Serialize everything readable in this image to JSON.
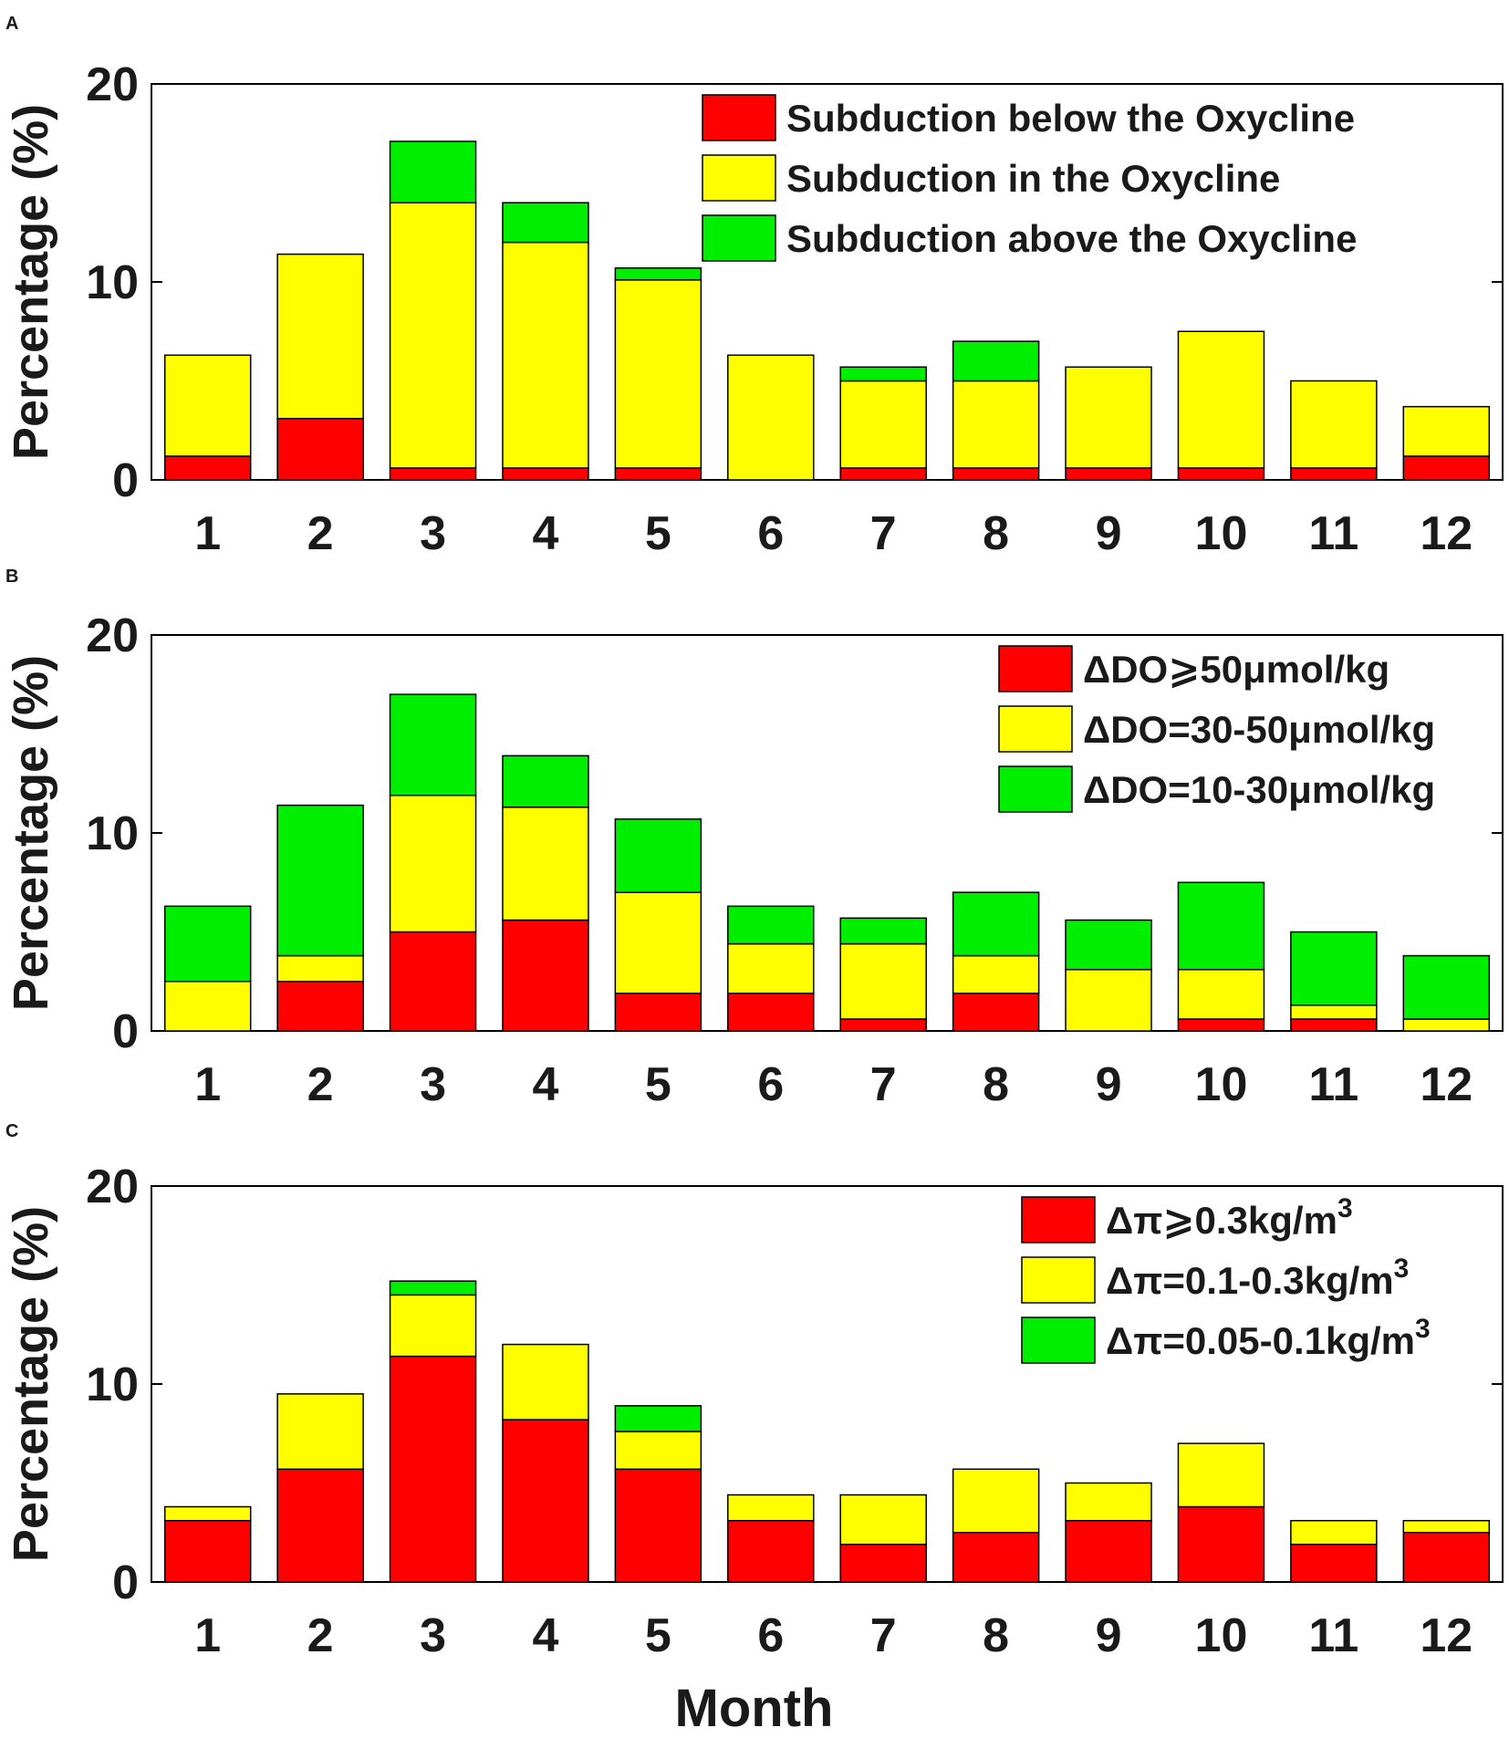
{
  "figure": {
    "xlabel": "Month"
  },
  "colors": {
    "red": "#ff0000",
    "yellow": "#ffff00",
    "green": "#00ee00",
    "axis": "#000000"
  },
  "chart_data": [
    {
      "panel": "A",
      "type": "bar",
      "stacked": true,
      "ylabel": "Percentage (%)",
      "ylim": [
        0,
        20
      ],
      "yticks": [
        0,
        10,
        20
      ],
      "categories": [
        "1",
        "2",
        "3",
        "4",
        "5",
        "6",
        "7",
        "8",
        "9",
        "10",
        "11",
        "12"
      ],
      "legend_position": "top-right",
      "series": [
        {
          "name": "Subduction below the Oxycline",
          "color": "#ff0000",
          "values": [
            1.2,
            3.1,
            0.6,
            0.6,
            0.6,
            0,
            0.6,
            0.6,
            0.6,
            0.6,
            0.6,
            1.2
          ]
        },
        {
          "name": "Subduction in the Oxycline",
          "color": "#ffff00",
          "values": [
            5.1,
            8.3,
            13.4,
            11.4,
            9.5,
            6.3,
            4.4,
            4.4,
            5.1,
            6.9,
            4.4,
            2.5
          ]
        },
        {
          "name": "Subduction above the Oxycline",
          "color": "#00ee00",
          "values": [
            0,
            0,
            3.1,
            2.0,
            0.6,
            0,
            0.7,
            2.0,
            0,
            0,
            0,
            0
          ]
        }
      ]
    },
    {
      "panel": "B",
      "type": "bar",
      "stacked": true,
      "ylabel": "Percentage (%)",
      "ylim": [
        0,
        20
      ],
      "yticks": [
        0,
        10,
        20
      ],
      "categories": [
        "1",
        "2",
        "3",
        "4",
        "5",
        "6",
        "7",
        "8",
        "9",
        "10",
        "11",
        "12"
      ],
      "legend_position": "top-right",
      "series": [
        {
          "name": "ΔDO⩾50μmol/kg",
          "color": "#ff0000",
          "values": [
            0,
            2.5,
            5.0,
            5.6,
            1.9,
            1.9,
            0.6,
            1.9,
            0,
            0.6,
            0.6,
            0
          ]
        },
        {
          "name": "ΔDO=30-50μmol/kg",
          "color": "#ffff00",
          "values": [
            2.5,
            1.3,
            6.9,
            5.7,
            5.1,
            2.5,
            3.8,
            1.9,
            3.1,
            2.5,
            0.7,
            0.6
          ]
        },
        {
          "name": "ΔDO=10-30μmol/kg",
          "color": "#00ee00",
          "values": [
            3.8,
            7.6,
            5.1,
            2.6,
            3.7,
            1.9,
            1.3,
            3.2,
            2.5,
            4.4,
            3.7,
            3.2
          ]
        }
      ]
    },
    {
      "panel": "C",
      "type": "bar",
      "stacked": true,
      "ylabel": "Percentage (%)",
      "ylim": [
        0,
        20
      ],
      "yticks": [
        0,
        10,
        20
      ],
      "categories": [
        "1",
        "2",
        "3",
        "4",
        "5",
        "6",
        "7",
        "8",
        "9",
        "10",
        "11",
        "12"
      ],
      "legend_position": "top-right",
      "series": [
        {
          "name": "Δπ⩾0.3kg/m",
          "sup": "3",
          "color": "#ff0000",
          "values": [
            3.1,
            5.7,
            11.4,
            8.2,
            5.7,
            3.1,
            1.9,
            2.5,
            3.1,
            3.8,
            1.9,
            2.5
          ]
        },
        {
          "name": "Δπ=0.1-0.3kg/m",
          "sup": "3",
          "color": "#ffff00",
          "values": [
            0.7,
            3.8,
            3.1,
            3.8,
            1.9,
            1.3,
            2.5,
            3.2,
            1.9,
            3.2,
            1.2,
            0.6
          ]
        },
        {
          "name": "Δπ=0.05-0.1kg/m",
          "sup": "3",
          "color": "#00ee00",
          "values": [
            0,
            0,
            0.7,
            0,
            1.3,
            0,
            0,
            0,
            0,
            0,
            0,
            0
          ]
        }
      ]
    }
  ]
}
